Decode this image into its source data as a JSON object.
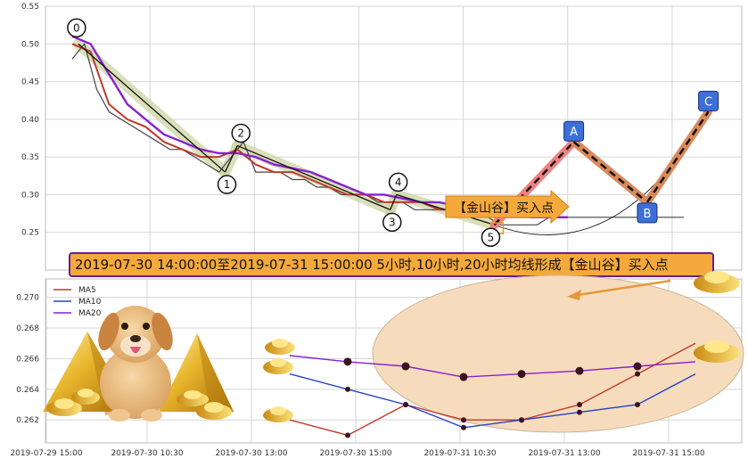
{
  "banner": "2019-07-30 14:00:00至2019-07-31 15:00:00 5小时,10小时,20小时均线形成【金山谷】买入点",
  "callout": "【金山谷】买入点",
  "colors": {
    "ma5": "#c0392b",
    "ma10": "#2540c9",
    "ma20": "#8a1fd0",
    "price": "#444444",
    "wave_fill": "#cfd8a8",
    "banner_bg": "#f6a93b",
    "banner_border": "#6a1b9a",
    "callout_bg": "#f6a93b",
    "ellipse_fill": "#f6dcbc",
    "projection_fill": "#d98a5c",
    "projection_red": "#f08080",
    "marker_fill": "#3c6fd8"
  },
  "chart_data": [
    {
      "type": "line",
      "title": "",
      "ylim": [
        0.2,
        0.55
      ],
      "yticks": [
        "0.25",
        "0.30",
        "0.35",
        "0.40",
        "0.45",
        "0.50",
        "0.55"
      ],
      "grid": true,
      "series": [
        {
          "name": "",
          "x": [
            0,
            2,
            4,
            6,
            8,
            10,
            12,
            14,
            16,
            18,
            20,
            22,
            24,
            26,
            28,
            30,
            32,
            34,
            36,
            38,
            40,
            42,
            44,
            46,
            48,
            50,
            52,
            54,
            56,
            58,
            60,
            62,
            64,
            66,
            68,
            70,
            72,
            74,
            76,
            78,
            80,
            82,
            84,
            86,
            88,
            90,
            92,
            94,
            96,
            98,
            100
          ],
          "y": [
            0.48,
            0.5,
            0.44,
            0.41,
            0.4,
            0.39,
            0.38,
            0.37,
            0.36,
            0.36,
            0.35,
            0.34,
            0.33,
            0.35,
            0.37,
            0.33,
            0.33,
            0.33,
            0.32,
            0.32,
            0.31,
            0.31,
            0.3,
            0.3,
            0.3,
            0.29,
            0.29,
            0.29,
            0.28,
            0.28,
            0.28,
            0.28,
            0.28,
            0.27,
            0.27,
            0.26,
            0.26,
            0.26,
            0.26,
            0.27,
            0.27,
            0.27,
            0.27,
            0.27,
            0.27,
            0.27,
            0.27,
            0.27,
            0.27,
            0.27,
            0.27
          ]
        },
        {
          "name": "",
          "x": [
            0,
            3,
            6,
            9,
            12,
            15,
            18,
            21,
            24,
            27,
            30,
            33,
            36,
            39,
            42,
            45,
            48,
            51,
            54,
            57,
            60,
            63,
            66,
            69,
            72,
            75,
            78,
            81
          ],
          "y": [
            0.5,
            0.49,
            0.42,
            0.4,
            0.39,
            0.37,
            0.36,
            0.35,
            0.35,
            0.36,
            0.34,
            0.33,
            0.33,
            0.32,
            0.31,
            0.3,
            0.3,
            0.29,
            0.29,
            0.29,
            0.28,
            0.28,
            0.28,
            0.27,
            0.27,
            0.27,
            0.27,
            0.27
          ]
        },
        {
          "name": "",
          "x": [
            0,
            3,
            6,
            9,
            12,
            15,
            18,
            21,
            24,
            27,
            30,
            33,
            36,
            39,
            42,
            45,
            48,
            51,
            54,
            57,
            60,
            63,
            66,
            69,
            72,
            75,
            78,
            81
          ],
          "y": [
            0.51,
            0.5,
            0.46,
            0.42,
            0.4,
            0.38,
            0.37,
            0.36,
            0.355,
            0.355,
            0.35,
            0.34,
            0.335,
            0.33,
            0.32,
            0.31,
            0.3,
            0.3,
            0.295,
            0.29,
            0.29,
            0.285,
            0.28,
            0.28,
            0.275,
            0.27,
            0.27,
            0.27
          ]
        }
      ],
      "wave_points": [
        {
          "label": "0",
          "x": 1,
          "y": 0.5
        },
        {
          "label": "1",
          "x": 25,
          "y": 0.33
        },
        {
          "label": "2",
          "x": 27,
          "y": 0.365
        },
        {
          "label": "3",
          "x": 52,
          "y": 0.28
        },
        {
          "label": "4",
          "x": 53,
          "y": 0.3
        },
        {
          "label": "5",
          "x": 69,
          "y": 0.26
        }
      ],
      "projection": [
        {
          "label": "A",
          "x": 82,
          "y": 0.37
        },
        {
          "label": "B",
          "x": 94,
          "y": 0.29
        },
        {
          "label": "C",
          "x": 104,
          "y": 0.41
        }
      ]
    },
    {
      "type": "line",
      "title": "",
      "ylim": [
        0.2605,
        0.2712
      ],
      "yticks": [
        "0.262",
        "0.264",
        "0.266",
        "0.268",
        "0.270"
      ],
      "categories": [
        "2019-07-29 15:00",
        "2019-07-30 10:30",
        "2019-07-30 13:00",
        "2019-07-30 15:00",
        "2019-07-31 10:30",
        "2019-07-31 13:00",
        "2019-07-31 15:00"
      ],
      "grid": true,
      "legend": "top-left",
      "series": [
        {
          "name": "MA5",
          "x": [
            0,
            1,
            2,
            3,
            4,
            5,
            6,
            7
          ],
          "y": [
            0.262,
            0.261,
            0.263,
            0.262,
            0.262,
            0.263,
            0.265,
            0.267
          ]
        },
        {
          "name": "MA10",
          "x": [
            0,
            1,
            2,
            3,
            4,
            5,
            6,
            7
          ],
          "y": [
            0.265,
            0.264,
            0.263,
            0.2615,
            0.262,
            0.2625,
            0.263,
            0.265
          ]
        },
        {
          "name": "MA20",
          "x": [
            0,
            1,
            2,
            3,
            4,
            5,
            6,
            7
          ],
          "y": [
            0.2662,
            0.2658,
            0.2655,
            0.2648,
            0.265,
            0.2652,
            0.2655,
            0.2658
          ]
        }
      ]
    }
  ]
}
